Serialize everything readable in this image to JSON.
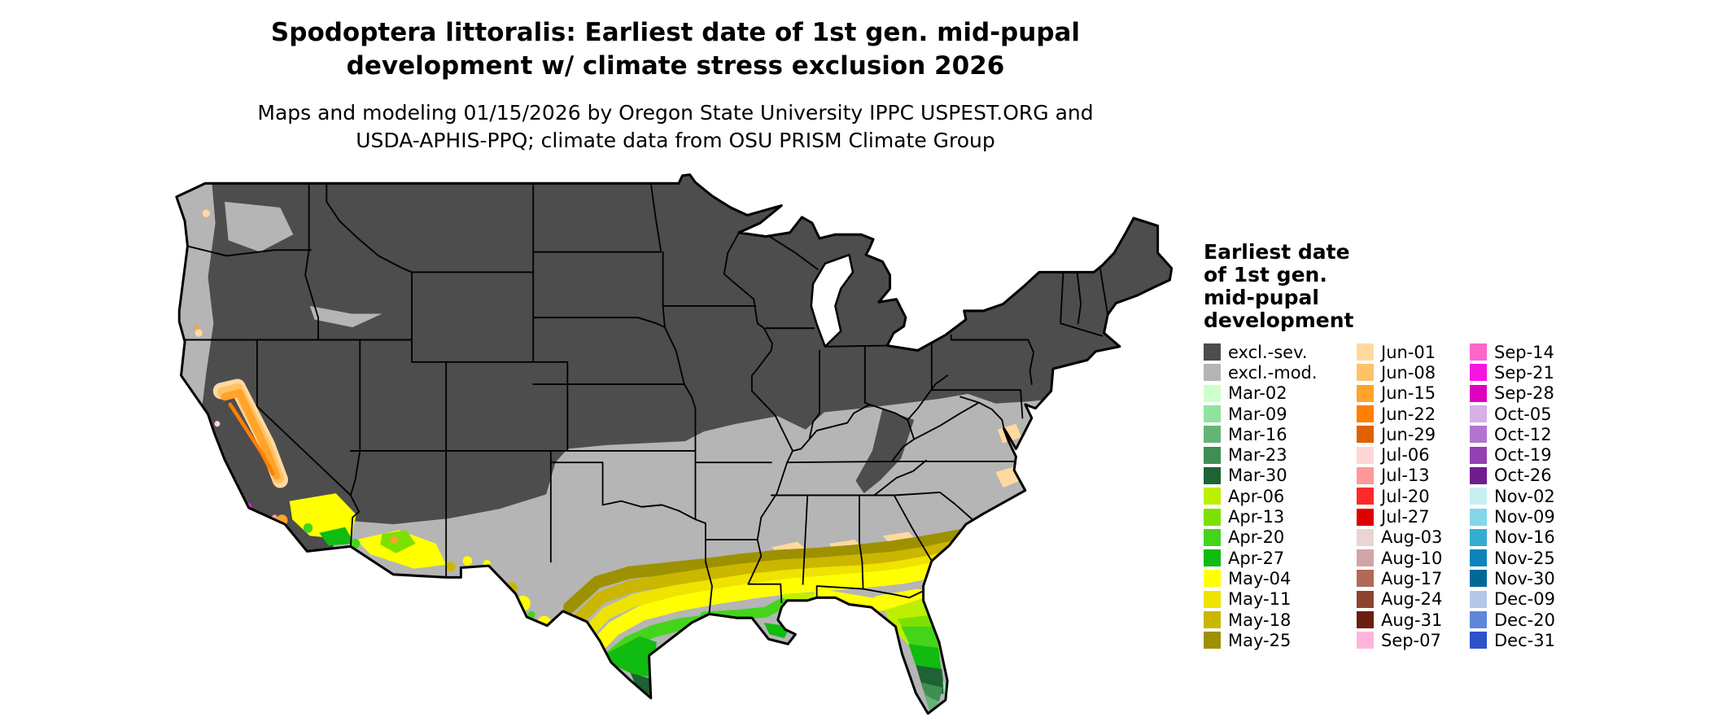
{
  "title": {
    "line1": "Spodoptera littoralis: Earliest date of 1st gen. mid-pupal",
    "line2": "development w/ climate stress exclusion 2026"
  },
  "subtitle": {
    "line1": "Maps and modeling 01/15/2026 by Oregon State University IPPC USPEST.ORG and",
    "line2": "USDA-APHIS-PPQ; climate data from OSU PRISM Climate Group"
  },
  "legend": {
    "title_lines": [
      "Earliest date",
      "of 1st gen.",
      "mid-pupal",
      "development"
    ],
    "columns": [
      {
        "items": [
          {
            "label": "excl.-sev.",
            "key": "excl_sev"
          },
          {
            "label": "excl.-mod.",
            "key": "excl_mod"
          },
          {
            "label": "Mar-02",
            "key": "mar02"
          },
          {
            "label": "Mar-09",
            "key": "mar09"
          },
          {
            "label": "Mar-16",
            "key": "mar16"
          },
          {
            "label": "Mar-23",
            "key": "mar23"
          },
          {
            "label": "Mar-30",
            "key": "mar30"
          },
          {
            "label": "Apr-06",
            "key": "apr06"
          },
          {
            "label": "Apr-13",
            "key": "apr13"
          },
          {
            "label": "Apr-20",
            "key": "apr20"
          },
          {
            "label": "Apr-27",
            "key": "apr27"
          },
          {
            "label": "May-04",
            "key": "may04"
          },
          {
            "label": "May-11",
            "key": "may11"
          },
          {
            "label": "May-18",
            "key": "may18"
          },
          {
            "label": "May-25",
            "key": "may25"
          }
        ]
      },
      {
        "items": [
          {
            "label": "Jun-01",
            "key": "jun01"
          },
          {
            "label": "Jun-08",
            "key": "jun08"
          },
          {
            "label": "Jun-15",
            "key": "jun15"
          },
          {
            "label": "Jun-22",
            "key": "jun22"
          },
          {
            "label": "Jun-29",
            "key": "jun29"
          },
          {
            "label": "Jul-06",
            "key": "jul06"
          },
          {
            "label": "Jul-13",
            "key": "jul13"
          },
          {
            "label": "Jul-20",
            "key": "jul20"
          },
          {
            "label": "Jul-27",
            "key": "jul27"
          },
          {
            "label": "Aug-03",
            "key": "aug03"
          },
          {
            "label": "Aug-10",
            "key": "aug10"
          },
          {
            "label": "Aug-17",
            "key": "aug17"
          },
          {
            "label": "Aug-24",
            "key": "aug24"
          },
          {
            "label": "Aug-31",
            "key": "aug31"
          },
          {
            "label": "Sep-07",
            "key": "sep07"
          }
        ]
      },
      {
        "items": [
          {
            "label": "Sep-14",
            "key": "sep14"
          },
          {
            "label": "Sep-21",
            "key": "sep21"
          },
          {
            "label": "Sep-28",
            "key": "sep28"
          },
          {
            "label": "Oct-05",
            "key": "oct05"
          },
          {
            "label": "Oct-12",
            "key": "oct12"
          },
          {
            "label": "Oct-19",
            "key": "oct19"
          },
          {
            "label": "Oct-26",
            "key": "oct26"
          },
          {
            "label": "Nov-02",
            "key": "nov02"
          },
          {
            "label": "Nov-09",
            "key": "nov09"
          },
          {
            "label": "Nov-16",
            "key": "nov16"
          },
          {
            "label": "Nov-25",
            "key": "nov25"
          },
          {
            "label": "Nov-30",
            "key": "nov30"
          },
          {
            "label": "Dec-09",
            "key": "dec09"
          },
          {
            "label": "Dec-20",
            "key": "dec20"
          },
          {
            "label": "Dec-31",
            "key": "dec31"
          }
        ]
      }
    ]
  },
  "palette": {
    "excl_sev": "#4d4d4d",
    "excl_mod": "#b5b5b5",
    "mar02": "#ccffcc",
    "mar09": "#8fe39f",
    "mar16": "#66b377",
    "mar23": "#3f8f53",
    "mar30": "#1e6333",
    "apr06": "#bdf000",
    "apr13": "#7ee000",
    "apr20": "#44d41c",
    "apr27": "#0fbc0f",
    "may04": "#ffff00",
    "may11": "#efe300",
    "may18": "#cbb600",
    "may25": "#9e9100",
    "jun01": "#ffd9a0",
    "jun08": "#ffc266",
    "jun15": "#ffa32b",
    "jun22": "#ff7f00",
    "jun29": "#df6100",
    "jul06": "#ffd6d6",
    "jul13": "#ff9999",
    "jul20": "#ff2929",
    "jul27": "#df0000",
    "aug03": "#ead4d4",
    "aug10": "#d2a5a5",
    "aug17": "#b06a55",
    "aug24": "#8e4330",
    "aug31": "#6b1f10",
    "sep07": "#ffb5db",
    "sep14": "#ff66cc",
    "sep21": "#fa14e0",
    "sep28": "#e000c0",
    "oct05": "#d7b0e6",
    "oct12": "#b274d2",
    "oct19": "#9340b0",
    "oct26": "#6f1e90",
    "nov02": "#c7eff2",
    "nov09": "#83d7e8",
    "nov16": "#35acd2",
    "nov25": "#0a84ba",
    "nov30": "#006898",
    "dec09": "#b5c7e8",
    "dec20": "#6086dc",
    "dec31": "#2d52cb"
  }
}
